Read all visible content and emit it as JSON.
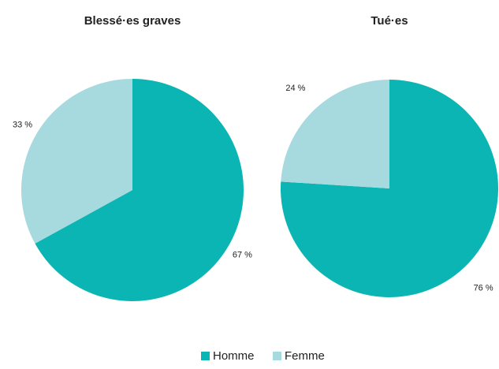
{
  "chart_data": [
    {
      "type": "pie",
      "title": "Blessé·es graves",
      "categories": [
        "Homme",
        "Femme"
      ],
      "values": [
        67,
        33
      ],
      "value_labels": [
        "67 %",
        "33 %"
      ],
      "colors": [
        "#0ab5b3",
        "#a6dadf"
      ]
    },
    {
      "type": "pie",
      "title": "Tué·es",
      "categories": [
        "Homme",
        "Femme"
      ],
      "values": [
        76,
        24
      ],
      "value_labels": [
        "76 %",
        "24 %"
      ],
      "colors": [
        "#0ab5b3",
        "#a6dadf"
      ]
    }
  ]
}
